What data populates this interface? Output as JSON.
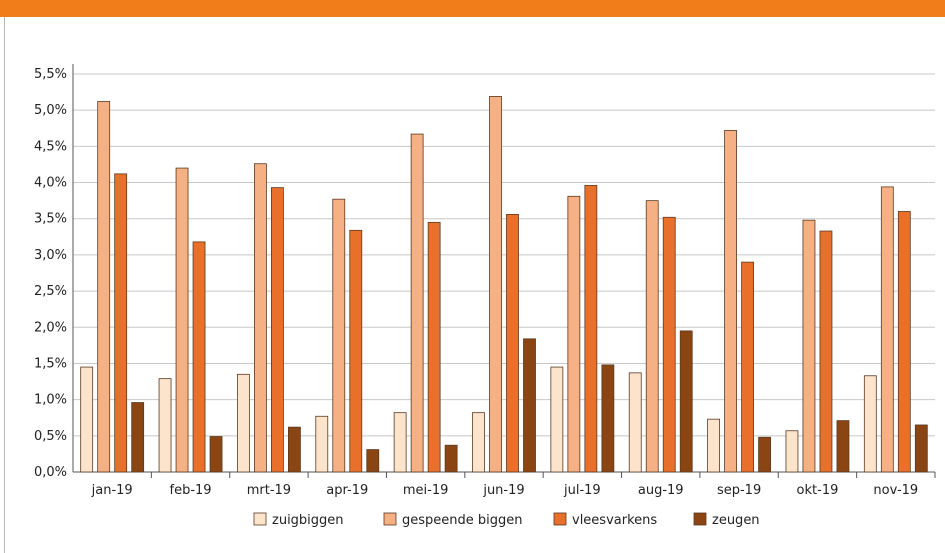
{
  "chart_data": {
    "type": "bar",
    "categories": [
      "jan-19",
      "feb-19",
      "mrt-19",
      "apr-19",
      "mei-19",
      "jun-19",
      "jul-19",
      "aug-19",
      "sep-19",
      "okt-19",
      "nov-19"
    ],
    "series": [
      {
        "name": "zuigbiggen",
        "color": "#fce4cc",
        "values": [
          1.45,
          1.29,
          1.35,
          0.77,
          0.82,
          0.82,
          1.45,
          1.37,
          0.73,
          0.57,
          1.33
        ]
      },
      {
        "name": "gespeende biggen",
        "color": "#f5b083",
        "values": [
          5.12,
          4.2,
          4.26,
          3.77,
          4.67,
          5.19,
          3.81,
          3.75,
          4.72,
          3.48,
          3.94
        ]
      },
      {
        "name": "vleesvarkens",
        "color": "#e8702a",
        "values": [
          4.12,
          3.18,
          3.93,
          3.34,
          3.45,
          3.56,
          3.96,
          3.52,
          2.9,
          3.33,
          3.6
        ]
      },
      {
        "name": "zeugen",
        "color": "#8b4513",
        "values": [
          0.96,
          0.49,
          0.62,
          0.31,
          0.37,
          1.84,
          1.48,
          1.95,
          0.48,
          0.71,
          0.65
        ]
      }
    ],
    "yticks": [
      "0,0%",
      "0,5%",
      "1,0%",
      "1,5%",
      "2,0%",
      "2,5%",
      "3,0%",
      "3,5%",
      "4,0%",
      "4,5%",
      "5,0%",
      "5,5%"
    ],
    "ylim": [
      0,
      5.5
    ],
    "grid": true,
    "legend_position": "bottom",
    "title": "",
    "xlabel": "",
    "ylabel": ""
  }
}
